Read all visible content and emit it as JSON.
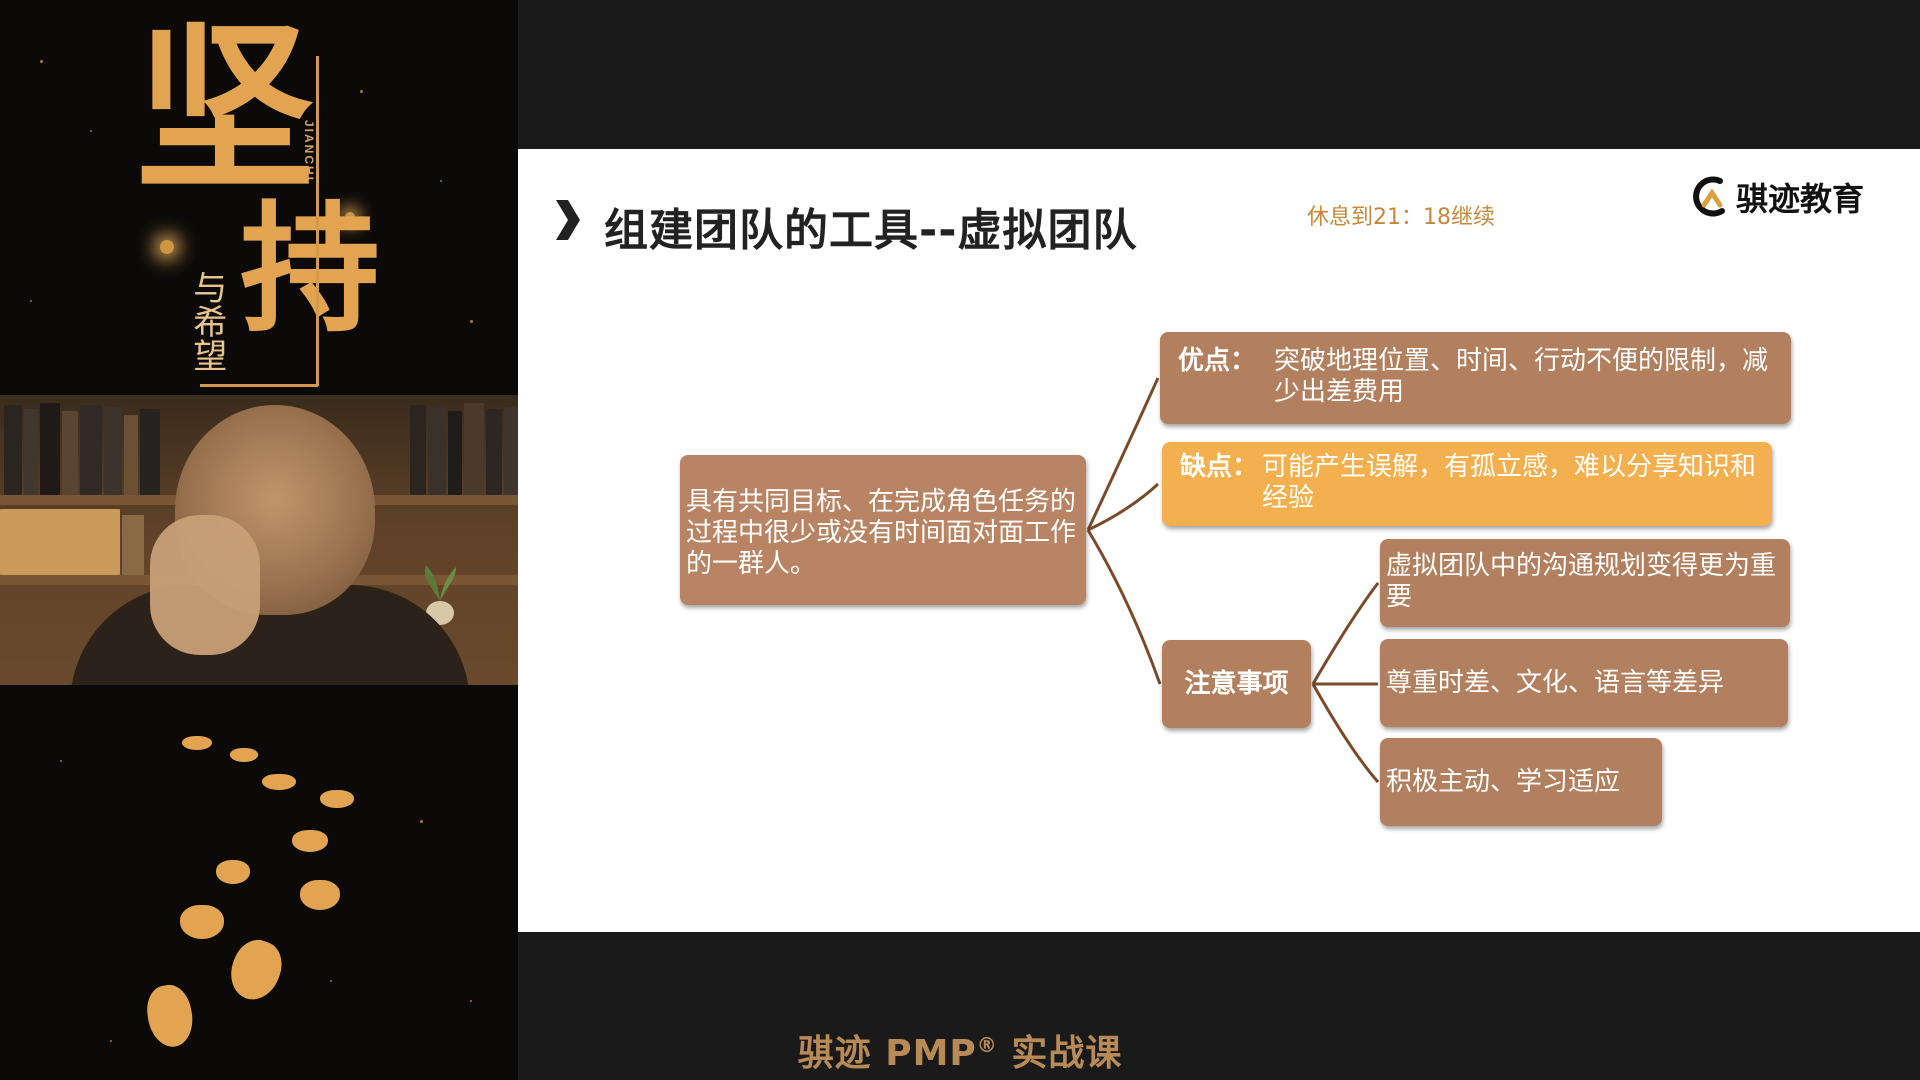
{
  "poster": {
    "title_main": "坚",
    "title_second": "持",
    "subtitle": "与希望",
    "pinyin": "JIANCHI"
  },
  "slide": {
    "title": "组建团队的工具--虚拟团队",
    "break_note": "休息到21：18继续",
    "logo_text": "骐迹教育",
    "definition": "具有共同目标、在完成角色任务的过程中很少或没有时间面对面工作的一群人。",
    "pros": {
      "label": "优点：",
      "text": "突破地理位置、时间、行动不便的限制，减少出差费用"
    },
    "cons": {
      "label": "缺点：",
      "text": "可能产生误解，有孤立感，难以分享知识和经验"
    },
    "notes": {
      "label": "注意事项",
      "items": [
        "虚拟团队中的沟通规划变得更为重要",
        "尊重时差、文化、语言等差异",
        "积极主动、学习适应"
      ]
    },
    "colors": {
      "box_brown": "#b2805f",
      "box_orange": "#f4b04f",
      "accent_gold": "#c7883a"
    }
  },
  "footer": {
    "caption_prefix": "骐迹 PMP",
    "caption_reg": "®",
    "caption_suffix": " 实战课"
  }
}
